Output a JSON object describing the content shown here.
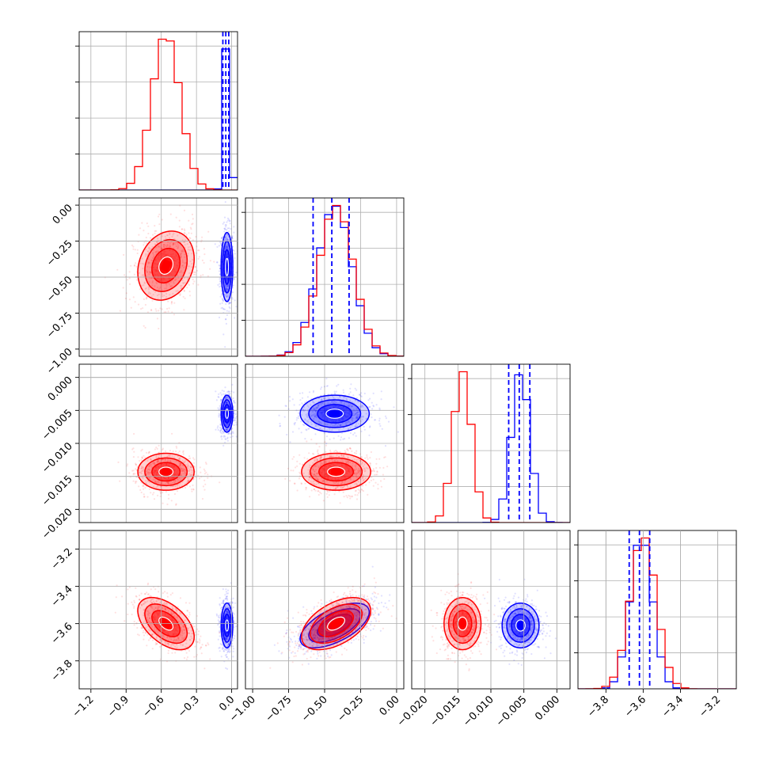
{
  "chart_data": {
    "type": "corner",
    "grid": true,
    "series": [
      {
        "color": "#ff0000"
      },
      {
        "color": "#0000ff"
      }
    ],
    "parameters": [
      {
        "index": 0,
        "range": [
          -1.3,
          0.05
        ],
        "ticks": [
          -1.2,
          -0.9,
          -0.6,
          -0.3,
          0.0
        ],
        "tick_labels": [
          "−1.2",
          "−0.9",
          "−0.6",
          "−0.3",
          "0.0"
        ],
        "red": {
          "mean": -0.56,
          "sd": 0.12
        },
        "blue": {
          "mean": -0.04,
          "sd": 0.025
        },
        "quantile_lines": [
          -0.075,
          -0.05,
          -0.025
        ]
      },
      {
        "index": 1,
        "range": [
          -1.05,
          0.05
        ],
        "ticks": [
          -1.0,
          -0.75,
          -0.5,
          -0.25,
          0.0
        ],
        "tick_labels": [
          "−1.00",
          "−0.75",
          "−0.50",
          "−0.25",
          "0.00"
        ],
        "red": {
          "mean": -0.42,
          "sd": 0.12
        },
        "blue": {
          "mean": -0.43,
          "sd": 0.12
        },
        "quantile_lines": [
          -0.58,
          -0.45,
          -0.33
        ]
      },
      {
        "index": 2,
        "range": [
          -0.022,
          0.002
        ],
        "ticks": [
          -0.02,
          -0.015,
          -0.01,
          -0.005,
          0.0
        ],
        "tick_labels": [
          "−0.020",
          "−0.015",
          "−0.010",
          "−0.005",
          "0.000"
        ],
        "red": {
          "mean": -0.0143,
          "sd": 0.0014
        },
        "blue": {
          "mean": -0.0055,
          "sd": 0.0014
        },
        "quantile_lines": [
          -0.0073,
          -0.0057,
          -0.0041
        ]
      },
      {
        "index": 3,
        "range": [
          -3.95,
          -3.1
        ],
        "ticks": [
          -3.8,
          -3.6,
          -3.4,
          -3.2
        ],
        "tick_labels": [
          "−3.8",
          "−3.6",
          "−3.4",
          "−3.2"
        ],
        "red": {
          "mean": -3.6,
          "sd": 0.07
        },
        "blue": {
          "mean": -3.61,
          "sd": 0.06
        },
        "quantile_lines": [
          -3.675,
          -3.62,
          -3.565
        ]
      }
    ],
    "pair_correlations": {
      "red": {
        "1_0": 0.2,
        "2_0": 0.0,
        "2_1": 0.0,
        "3_0": -0.5,
        "3_1": 0.5,
        "3_2": 0.0
      },
      "blue": {
        "1_0": 0.0,
        "2_0": 0.0,
        "2_1": 0.0,
        "3_0": 0.0,
        "3_1": 0.6,
        "3_2": 0.0
      }
    },
    "contour_levels_sigma": [
      0.5,
      1.0,
      1.5,
      2.0
    ]
  }
}
